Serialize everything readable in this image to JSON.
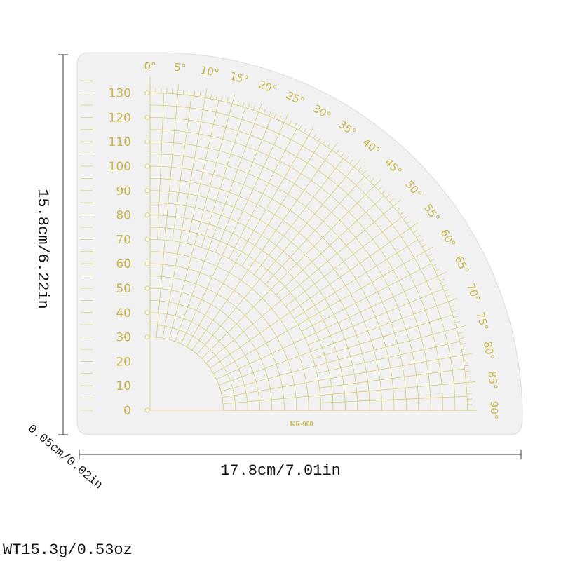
{
  "ruler": {
    "radial_labels": [
      "0",
      "10",
      "20",
      "30",
      "40",
      "50",
      "60",
      "70",
      "80",
      "90",
      "100",
      "110",
      "120",
      "130"
    ],
    "degree_labels": [
      "0°",
      "5°",
      "10°",
      "15°",
      "20°",
      "25°",
      "30°",
      "35°",
      "40°",
      "45°",
      "50°",
      "55°",
      "60°",
      "65°",
      "70°",
      "75°",
      "80°",
      "85°",
      "90°"
    ],
    "model": "KR-900"
  },
  "dimensions": {
    "height": "15.8cm/6.22in",
    "width": "17.8cm/7.01in",
    "thickness": "0.05cm/0.02in",
    "weight": "WT15.3g/0.53oz"
  }
}
